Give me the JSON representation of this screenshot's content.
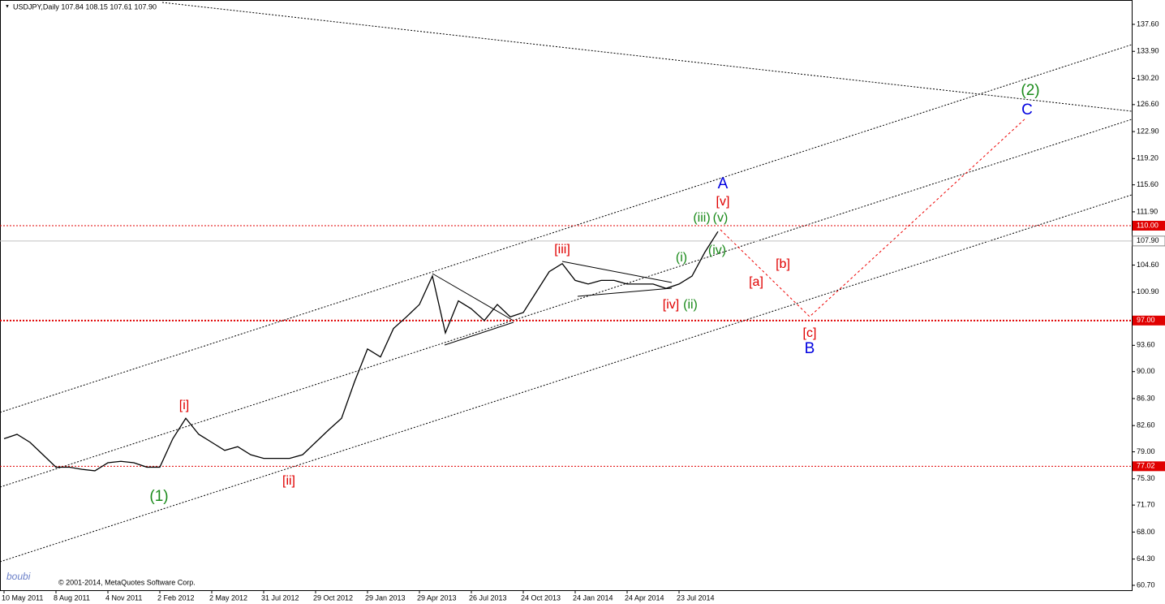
{
  "chart_data": {
    "type": "line",
    "title": "USDJPY,Daily  107.84 108.15 107.61 107.90",
    "copyright": "© 2001-2014, MetaQuotes Software Corp.",
    "watermark": "boubi",
    "categories": [
      "10 May 2011",
      null,
      null,
      null,
      "8 Aug 2011",
      null,
      null,
      null,
      "4 Nov 2011",
      null,
      null,
      null,
      "2 Feb 2012",
      null,
      null,
      null,
      "2 May 2012",
      null,
      null,
      null,
      "31 Jul 2012",
      null,
      null,
      null,
      "29 Oct 2012",
      null,
      null,
      null,
      "29 Jan 2013",
      null,
      null,
      null,
      "29 Apr 2013",
      null,
      null,
      null,
      "26 Jul 2013",
      null,
      null,
      null,
      "24 Oct 2013",
      null,
      null,
      null,
      "24 Jan 2014",
      null,
      null,
      null,
      "24 Apr 2014",
      null,
      null,
      null,
      "23 Jul 2014",
      null,
      null,
      null
    ],
    "series": [
      {
        "name": "USDJPY",
        "color": "#000000",
        "values": [
          80.8,
          81.4,
          80.3,
          78.6,
          76.9,
          76.9,
          76.6,
          76.4,
          77.5,
          77.7,
          77.5,
          76.9,
          76.9,
          80.8,
          83.6,
          81.4,
          80.3,
          79.2,
          79.7,
          78.6,
          78.1,
          78.1,
          78.1,
          78.6,
          80.3,
          82.0,
          83.6,
          88.6,
          93.1,
          92.0,
          95.9,
          97.5,
          99.2,
          103.1,
          95.3,
          99.7,
          98.6,
          97.0,
          99.2,
          97.5,
          98.1,
          100.9,
          103.7,
          104.8,
          102.5,
          102.0,
          102.5,
          102.5,
          102.0,
          102.0,
          102.0,
          101.4,
          102.0,
          103.1,
          106.4,
          109.2
        ]
      }
    ],
    "ylim": [
      60.03,
      140.94
    ],
    "yticks": [
      {
        "value": 137.6,
        "label": "137.60"
      },
      {
        "value": 133.9,
        "label": "133.90"
      },
      {
        "value": 130.2,
        "label": "130.20"
      },
      {
        "value": 126.6,
        "label": "126.60"
      },
      {
        "value": 122.9,
        "label": "122.90"
      },
      {
        "value": 119.2,
        "label": "119.20"
      },
      {
        "value": 115.6,
        "label": "115.60"
      },
      {
        "value": 111.9,
        "label": "111.90"
      },
      {
        "value": 104.6,
        "label": "104.60"
      },
      {
        "value": 100.9,
        "label": "100.90"
      },
      {
        "value": 93.6,
        "label": "93.60"
      },
      {
        "value": 90,
        "label": "90.00"
      },
      {
        "value": 86.3,
        "label": "86.30"
      },
      {
        "value": 82.6,
        "label": "82.60"
      },
      {
        "value": 79,
        "label": "79.00"
      },
      {
        "value": 75.3,
        "label": "75.30"
      },
      {
        "value": 71.7,
        "label": "71.70"
      },
      {
        "value": 68,
        "label": "68.00"
      },
      {
        "value": 64.3,
        "label": "64.30"
      },
      {
        "value": 60.7,
        "label": "60.70"
      }
    ],
    "levels": [
      {
        "value": 110,
        "label": "110.00",
        "color": "#e00000"
      },
      {
        "value": 107.9,
        "label": "107.90",
        "color": "#c0c0c0"
      },
      {
        "value": 97,
        "label": "97.00",
        "color": "#e00000"
      },
      {
        "value": 77.02,
        "label": "77.02",
        "color": "#e00000"
      }
    ],
    "annotations": [
      {
        "text": "[i]",
        "color": "#e00000"
      },
      {
        "text": "[ii]",
        "color": "#e00000"
      },
      {
        "text": "[iii]",
        "color": "#e00000"
      },
      {
        "text": "[iv]",
        "color": "#e00000"
      },
      {
        "text": "[v]",
        "color": "#e00000"
      },
      {
        "text": "[a]",
        "color": "#e00000"
      },
      {
        "text": "[b]",
        "color": "#e00000"
      },
      {
        "text": "[c]",
        "color": "#e00000"
      },
      {
        "text": "(1)",
        "color": "#1a8a1a"
      },
      {
        "text": "(i)",
        "color": "#1a8a1a"
      },
      {
        "text": "(ii)",
        "color": "#1a8a1a"
      },
      {
        "text": "(iii)",
        "color": "#1a8a1a"
      },
      {
        "text": "(iv)",
        "color": "#1a8a1a"
      },
      {
        "text": "(v)",
        "color": "#1a8a1a"
      },
      {
        "text": "(2)",
        "color": "#1a8a1a"
      },
      {
        "text": "A",
        "color": "#0000e0"
      },
      {
        "text": "B",
        "color": "#0000e0"
      },
      {
        "text": "C",
        "color": "#0000e0"
      }
    ]
  }
}
